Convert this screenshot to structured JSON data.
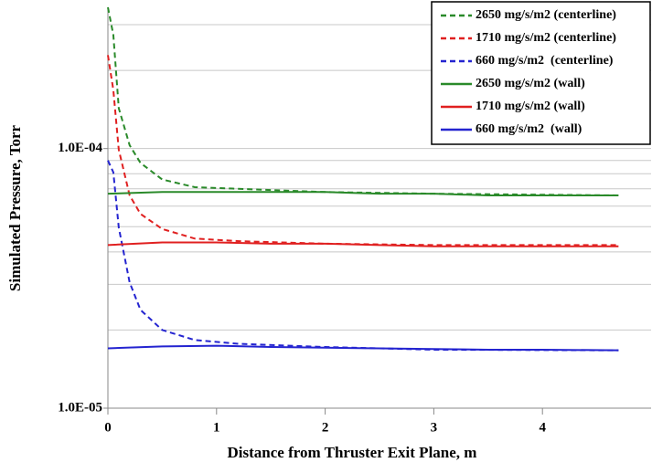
{
  "chart_data": {
    "type": "line",
    "x_label": "Distance from Thruster Exit Plane, m",
    "y_label": "Simulated Pressure, Torr",
    "y_log": true,
    "xlim": [
      0,
      5
    ],
    "xticks": [
      0,
      1,
      2,
      3,
      4
    ],
    "ylim": [
      1e-05,
      0.00035
    ],
    "yticks": [
      {
        "value": 1e-05,
        "label": "1.0E-05"
      },
      {
        "value": 0.0001,
        "label": "1.0E-04"
      }
    ],
    "y_gridlines": [
      2e-05,
      3e-05,
      4e-05,
      5e-05,
      6e-05,
      7e-05,
      8e-05,
      9e-05,
      0.0001,
      0.0002,
      0.0003
    ],
    "grid": true,
    "legend": "upper right",
    "series": [
      {
        "name": "2650 mg/s/m2 (centerline)",
        "color": "#2a8a2a",
        "dash": true,
        "x": [
          0,
          0.05,
          0.1,
          0.2,
          0.3,
          0.5,
          0.8,
          1.2,
          2,
          3,
          4.7
        ],
        "values": [
          0.00035,
          0.000274,
          0.000143,
          0.000103,
          8.8e-05,
          7.6e-05,
          7.1e-05,
          7e-05,
          6.8e-05,
          6.7e-05,
          6.6e-05
        ]
      },
      {
        "name": "1710 mg/s/m2 (centerline)",
        "color": "#e02020",
        "dash": true,
        "x": [
          0,
          0.05,
          0.1,
          0.2,
          0.3,
          0.5,
          0.8,
          1.2,
          2,
          3,
          4.7
        ],
        "values": [
          0.000229,
          0.000168,
          9.9e-05,
          6.6e-05,
          5.6e-05,
          4.9e-05,
          4.5e-05,
          4.4e-05,
          4.3e-05,
          4.25e-05,
          4.25e-05
        ]
      },
      {
        "name": "660 mg/s/m2  (centerline)",
        "color": "#2424d0",
        "dash": true,
        "x": [
          0,
          0.05,
          0.1,
          0.2,
          0.3,
          0.5,
          0.8,
          1.2,
          2,
          3,
          4.7
        ],
        "values": [
          9e-05,
          8.1e-05,
          4.96e-05,
          3.05e-05,
          2.39e-05,
          2e-05,
          1.83e-05,
          1.77e-05,
          1.72e-05,
          1.68e-05,
          1.67e-05
        ]
      },
      {
        "name": "2650 mg/s/m2 (wall)",
        "color": "#2a8a2a",
        "dash": false,
        "x": [
          0,
          0.5,
          1,
          1.5,
          2,
          2.5,
          3,
          3.5,
          4,
          4.7
        ],
        "values": [
          6.7e-05,
          6.8e-05,
          6.8e-05,
          6.8e-05,
          6.8e-05,
          6.7e-05,
          6.7e-05,
          6.6e-05,
          6.6e-05,
          6.6e-05
        ]
      },
      {
        "name": "1710 mg/s/m2 (wall)",
        "color": "#e02020",
        "dash": false,
        "x": [
          0,
          0.5,
          1,
          1.5,
          2,
          2.5,
          3,
          3.5,
          4,
          4.7
        ],
        "values": [
          4.25e-05,
          4.35e-05,
          4.35e-05,
          4.3e-05,
          4.3e-05,
          4.25e-05,
          4.2e-05,
          4.2e-05,
          4.2e-05,
          4.2e-05
        ]
      },
      {
        "name": "660 mg/s/m2  (wall)",
        "color": "#2424d0",
        "dash": false,
        "x": [
          0,
          0.5,
          1,
          1.5,
          2,
          2.5,
          3,
          3.5,
          4,
          4.7
        ],
        "values": [
          1.7e-05,
          1.73e-05,
          1.74e-05,
          1.72e-05,
          1.71e-05,
          1.7e-05,
          1.69e-05,
          1.68e-05,
          1.68e-05,
          1.67e-05
        ]
      }
    ]
  }
}
